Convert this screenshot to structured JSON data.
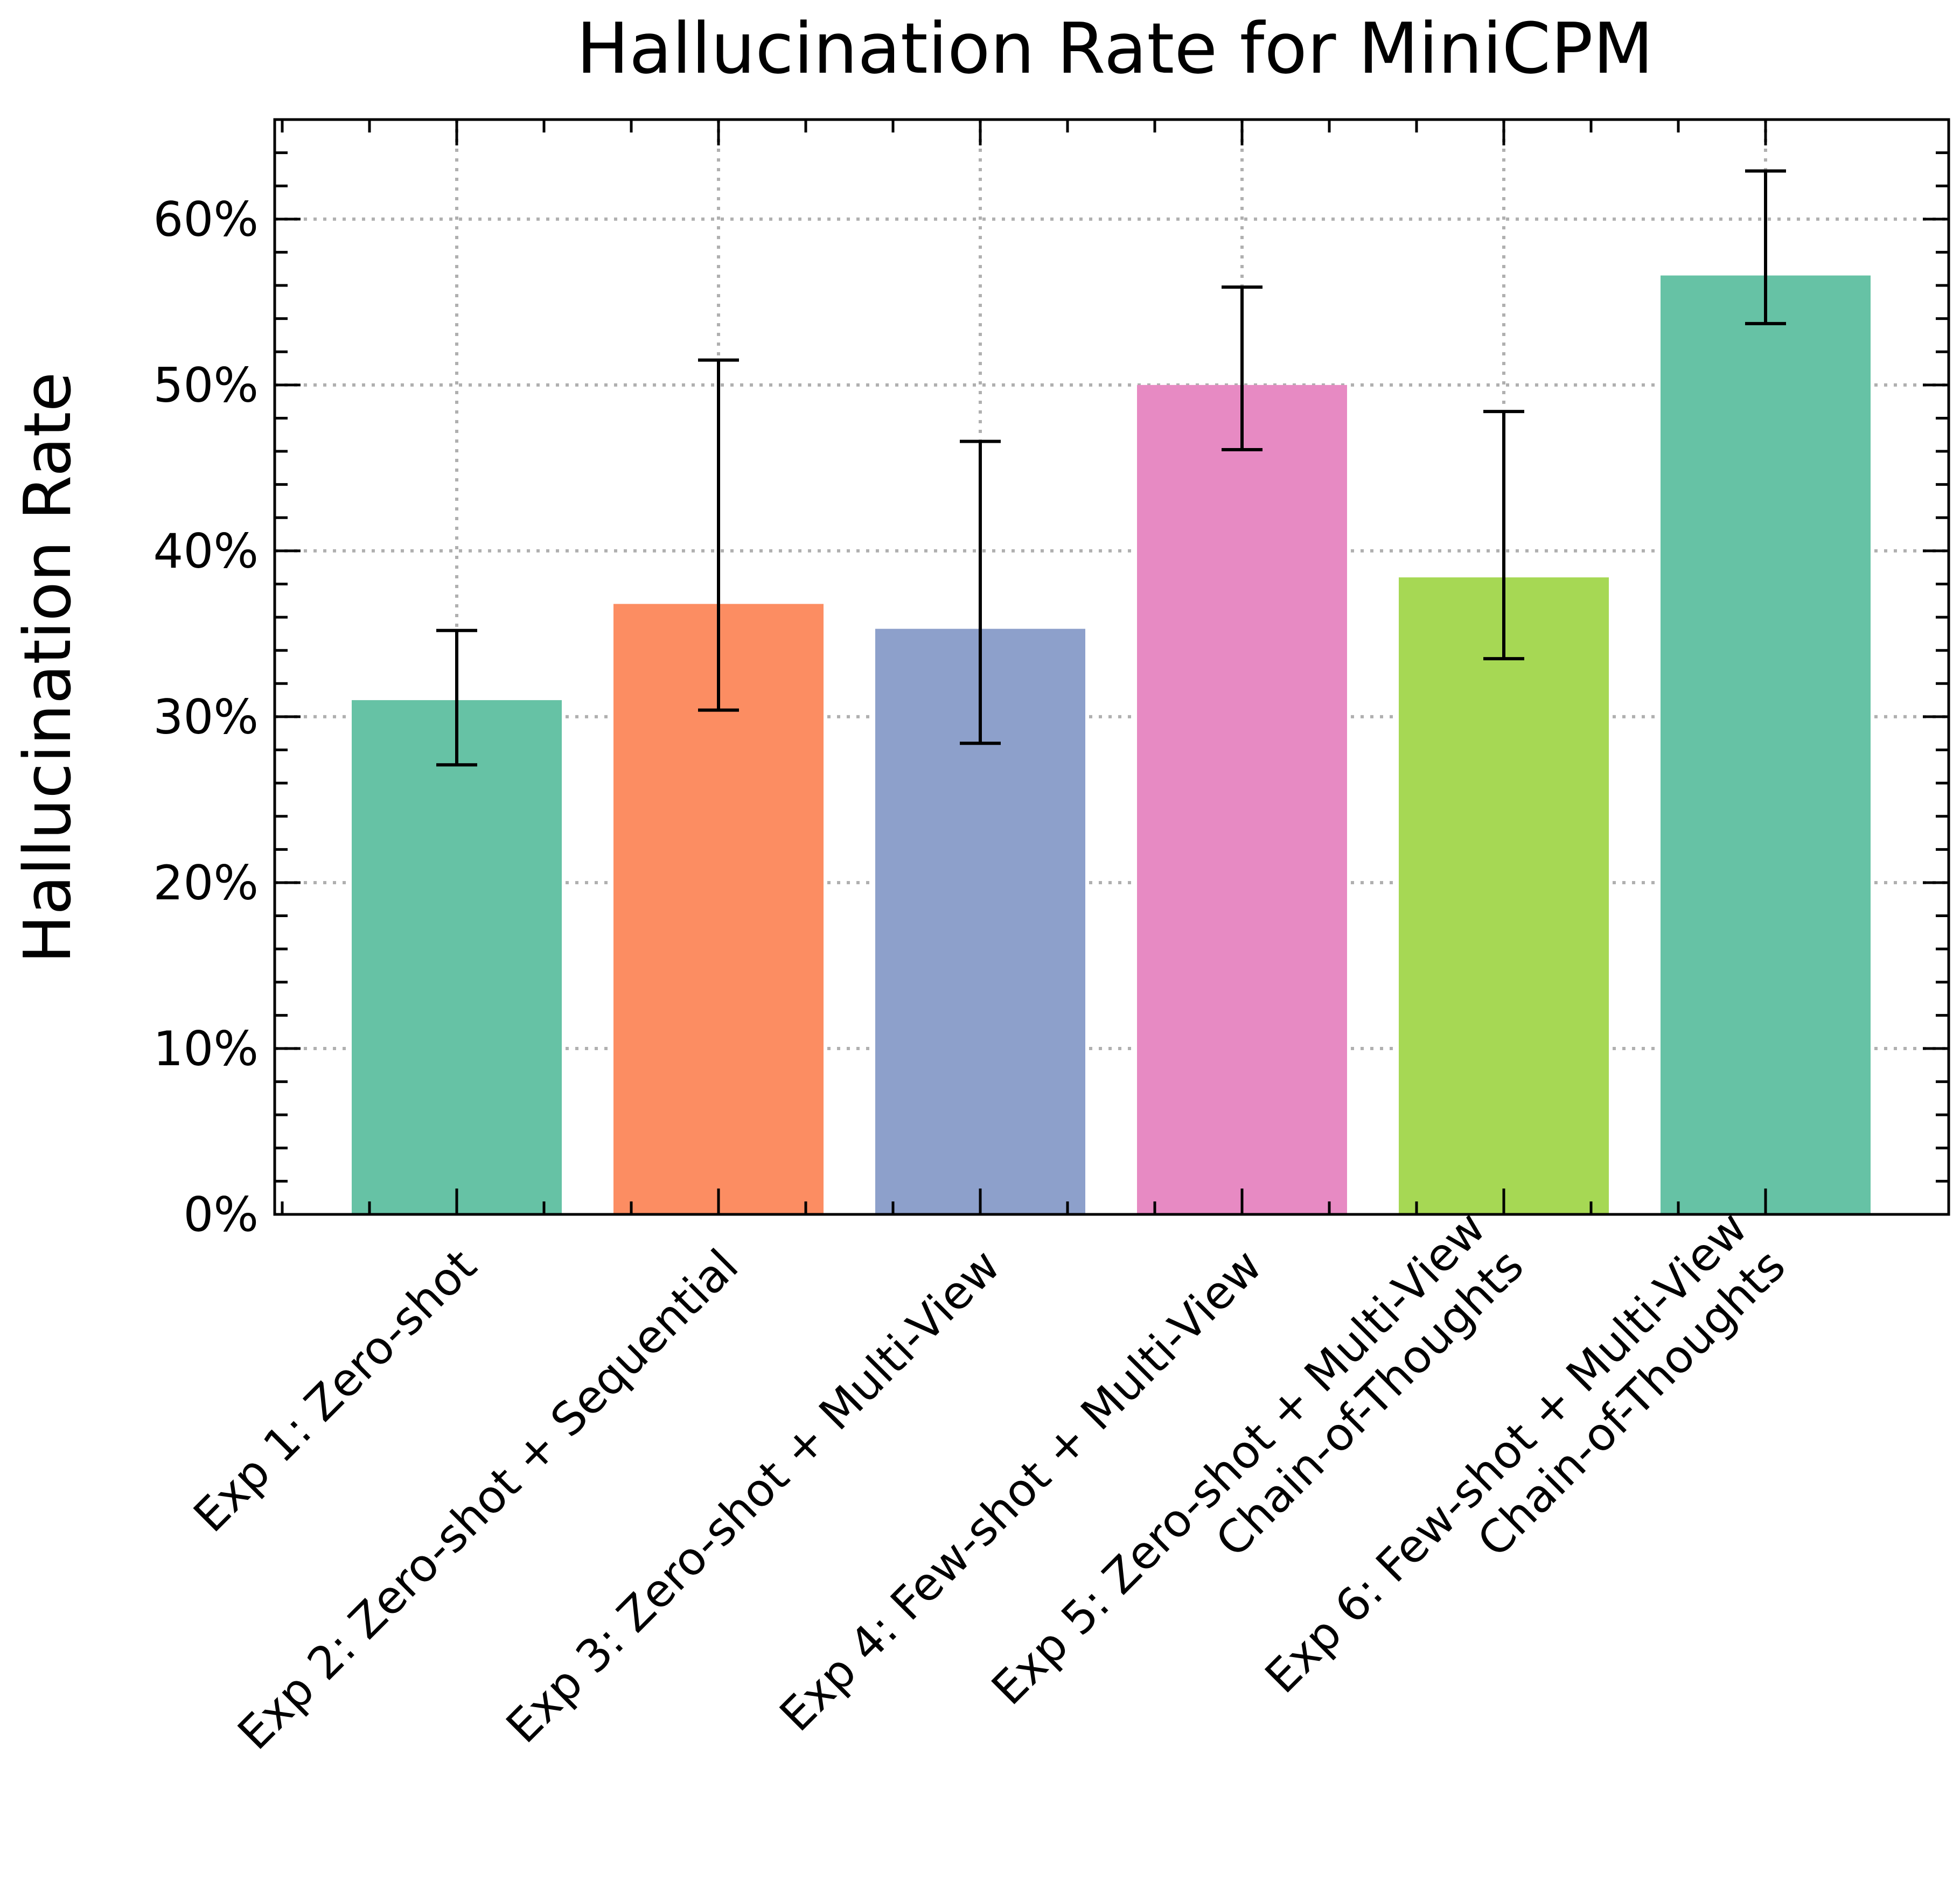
{
  "chart_data": {
    "type": "bar",
    "title": "Hallucination Rate for MiniCPM",
    "xlabel": "",
    "ylabel": "Hallucination Rate",
    "ylim": [
      0,
      66
    ],
    "yticks": [
      0,
      10,
      20,
      30,
      40,
      50,
      60
    ],
    "ytick_labels": [
      "0%",
      "10%",
      "20%",
      "30%",
      "40%",
      "50%",
      "60%"
    ],
    "grid": true,
    "categories": [
      [
        "Exp 1: Zero-shot"
      ],
      [
        "Exp 2: Zero-shot + Sequential"
      ],
      [
        "Exp 3: Zero-shot + Multi-View"
      ],
      [
        "Exp 4: Few-shot + Multi-View"
      ],
      [
        "Exp 5: Zero-shot + Multi-View",
        "Chain-of-Thoughts"
      ],
      [
        "Exp 6: Few-shot + Multi-View",
        "Chain-of-Thoughts"
      ]
    ],
    "values": [
      31.0,
      36.8,
      35.3,
      50.0,
      38.4,
      56.6
    ],
    "error_low": [
      27.1,
      30.4,
      28.4,
      46.1,
      33.5,
      53.7
    ],
    "error_high": [
      35.2,
      51.5,
      46.6,
      55.9,
      48.4,
      62.9
    ],
    "colors": [
      "#66c2a5",
      "#fc8d62",
      "#8da0cb",
      "#e78ac3",
      "#a6d854",
      "#66c2a5"
    ]
  }
}
